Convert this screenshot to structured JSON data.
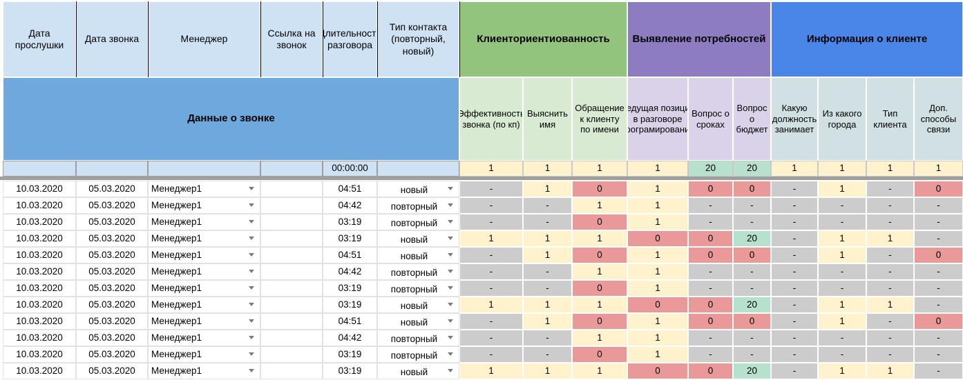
{
  "header": {
    "call_info_cols": [
      "Дата прослушки",
      "Дата звонка",
      "Менеджер",
      "Ссылка на звонок",
      "Длительность разговора",
      "Тип контакта (повторный, новый)"
    ],
    "call_info_group": "Данные о звонке",
    "groups": [
      {
        "label": "Клиенториентиованность",
        "color": "#93c47d"
      },
      {
        "label": "Выявление потребностей",
        "color": "#8e7cc3"
      },
      {
        "label": "Информация о клиенте",
        "color": "#4a86e8"
      }
    ],
    "criteria": [
      "Эффективность звонка (по кп)",
      "Выяснить имя",
      "Обращение к клиенту по имени",
      "Ведущая позиция в разговоре (програмирование)",
      "Вопрос о сроках",
      "Вопрос о бюджет",
      "Какую должность занимает",
      "Из какого города",
      "Тип клиента",
      "Доп. способы связи"
    ]
  },
  "weights": {
    "duration_total": "00:00:00",
    "values": [
      "1",
      "1",
      "1",
      "1",
      "20",
      "20",
      "1",
      "1",
      "1",
      "1"
    ]
  },
  "colors": {
    "light_blue": "#cfe2f3",
    "blue": "#6fa8dc",
    "light_green": "#d9ead3",
    "light_purple": "#d9d2e9",
    "light_cyan": "#d0e0e3",
    "yellow": "#fff2cc",
    "red": "#ea9999",
    "gray": "#cccccc",
    "green": "#b6d7a8",
    "mint": "#b7e1cd"
  },
  "rows": [
    {
      "listen_date": "10.03.2020",
      "call_date": "05.03.2020",
      "manager": "Менеджер1",
      "duration": "04:51",
      "contact_type": "новый",
      "scores": [
        "-",
        "1",
        "0",
        "1",
        "0",
        "0",
        "-",
        "1",
        "-",
        "0"
      ]
    },
    {
      "listen_date": "10.03.2020",
      "call_date": "05.03.2020",
      "manager": "Менеджер1",
      "duration": "04:42",
      "contact_type": "повторный",
      "scores": [
        "-",
        "-",
        "1",
        "1",
        "-",
        "-",
        "-",
        "-",
        "-",
        "-"
      ]
    },
    {
      "listen_date": "10.03.2020",
      "call_date": "05.03.2020",
      "manager": "Менеджер1",
      "duration": "03:19",
      "contact_type": "повторный",
      "scores": [
        "-",
        "-",
        "0",
        "1",
        "-",
        "-",
        "-",
        "-",
        "-",
        "-"
      ]
    },
    {
      "listen_date": "10.03.2020",
      "call_date": "05.03.2020",
      "manager": "Менеджер1",
      "duration": "03:19",
      "contact_type": "новый",
      "scores": [
        "1",
        "1",
        "1",
        "0",
        "0",
        "20",
        "-",
        "1",
        "1",
        "-"
      ]
    },
    {
      "listen_date": "10.03.2020",
      "call_date": "05.03.2020",
      "manager": "Менеджер1",
      "duration": "04:51",
      "contact_type": "новый",
      "scores": [
        "-",
        "1",
        "0",
        "1",
        "0",
        "0",
        "-",
        "1",
        "-",
        "0"
      ]
    },
    {
      "listen_date": "10.03.2020",
      "call_date": "05.03.2020",
      "manager": "Менеджер1",
      "duration": "04:42",
      "contact_type": "повторный",
      "scores": [
        "-",
        "-",
        "1",
        "1",
        "-",
        "-",
        "-",
        "-",
        "-",
        "-"
      ]
    },
    {
      "listen_date": "10.03.2020",
      "call_date": "05.03.2020",
      "manager": "Менеджер1",
      "duration": "03:19",
      "contact_type": "повторный",
      "scores": [
        "-",
        "-",
        "0",
        "1",
        "-",
        "-",
        "-",
        "-",
        "-",
        "-"
      ]
    },
    {
      "listen_date": "10.03.2020",
      "call_date": "05.03.2020",
      "manager": "Менеджер1",
      "duration": "03:19",
      "contact_type": "новый",
      "scores": [
        "1",
        "1",
        "1",
        "0",
        "0",
        "20",
        "-",
        "1",
        "1",
        "-"
      ]
    },
    {
      "listen_date": "10.03.2020",
      "call_date": "05.03.2020",
      "manager": "Менеджер1",
      "duration": "04:51",
      "contact_type": "новый",
      "scores": [
        "-",
        "1",
        "0",
        "1",
        "0",
        "0",
        "-",
        "1",
        "-",
        "0"
      ]
    },
    {
      "listen_date": "10.03.2020",
      "call_date": "05.03.2020",
      "manager": "Менеджер1",
      "duration": "04:42",
      "contact_type": "повторный",
      "scores": [
        "-",
        "-",
        "1",
        "1",
        "-",
        "-",
        "-",
        "-",
        "-",
        "-"
      ]
    },
    {
      "listen_date": "10.03.2020",
      "call_date": "05.03.2020",
      "manager": "Менеджер1",
      "duration": "03:19",
      "contact_type": "повторный",
      "scores": [
        "-",
        "-",
        "0",
        "1",
        "-",
        "-",
        "-",
        "-",
        "-",
        "-"
      ]
    },
    {
      "listen_date": "10.03.2020",
      "call_date": "05.03.2020",
      "manager": "Менеджер1",
      "duration": "03:19",
      "contact_type": "новый",
      "scores": [
        "1",
        "1",
        "1",
        "0",
        "0",
        "20",
        "-",
        "1",
        "1",
        "-"
      ]
    }
  ]
}
